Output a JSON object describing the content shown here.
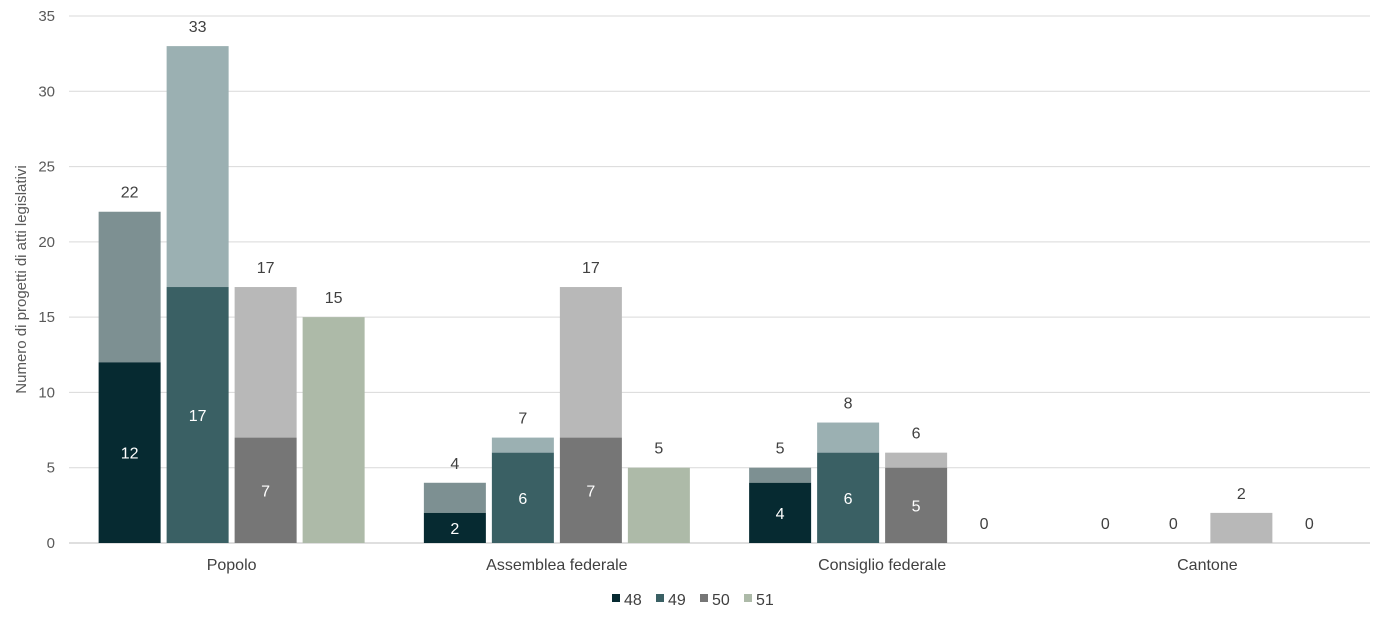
{
  "chart_data": {
    "type": "bar",
    "stacked_within_series": true,
    "ylabel": "Numero di progetti di atti legislativi",
    "ylim": [
      0,
      35
    ],
    "yticks": [
      0,
      5,
      10,
      15,
      20,
      25,
      30,
      35
    ],
    "categories": [
      "Popolo",
      "Assemblea federale",
      "Consiglio federale",
      "Cantone"
    ],
    "legend_position": "bottom",
    "grid": true,
    "series": [
      {
        "name": "48",
        "base_color": "#062a31",
        "top_color": "#7d9092",
        "base": [
          12,
          2,
          4,
          0
        ],
        "total": [
          22,
          4,
          5,
          0
        ],
        "base_labels": [
          "12",
          "2",
          "4",
          ""
        ],
        "total_labels": [
          "22",
          "4",
          "5",
          "0"
        ]
      },
      {
        "name": "49",
        "base_color": "#3a6064",
        "top_color": "#9bb0b2",
        "base": [
          17,
          6,
          6,
          0
        ],
        "total": [
          33,
          7,
          8,
          0
        ],
        "base_labels": [
          "17",
          "6",
          "6",
          ""
        ],
        "total_labels": [
          "33",
          "7",
          "8",
          "0"
        ]
      },
      {
        "name": "50",
        "base_color": "#767676",
        "top_color": "#b8b8b8",
        "base": [
          7,
          7,
          5,
          0
        ],
        "total": [
          17,
          17,
          6,
          2
        ],
        "base_labels": [
          "7",
          "7",
          "5",
          ""
        ],
        "total_labels": [
          "17",
          "17",
          "6",
          "2"
        ]
      },
      {
        "name": "51",
        "base_color": "#adbaa8",
        "top_color": "#adbaa8",
        "base": [
          15,
          5,
          0,
          0
        ],
        "total": [
          15,
          5,
          0,
          0
        ],
        "base_labels": [
          "",
          "",
          "",
          ""
        ],
        "total_labels": [
          "15",
          "5",
          "0",
          "0"
        ]
      }
    ]
  }
}
